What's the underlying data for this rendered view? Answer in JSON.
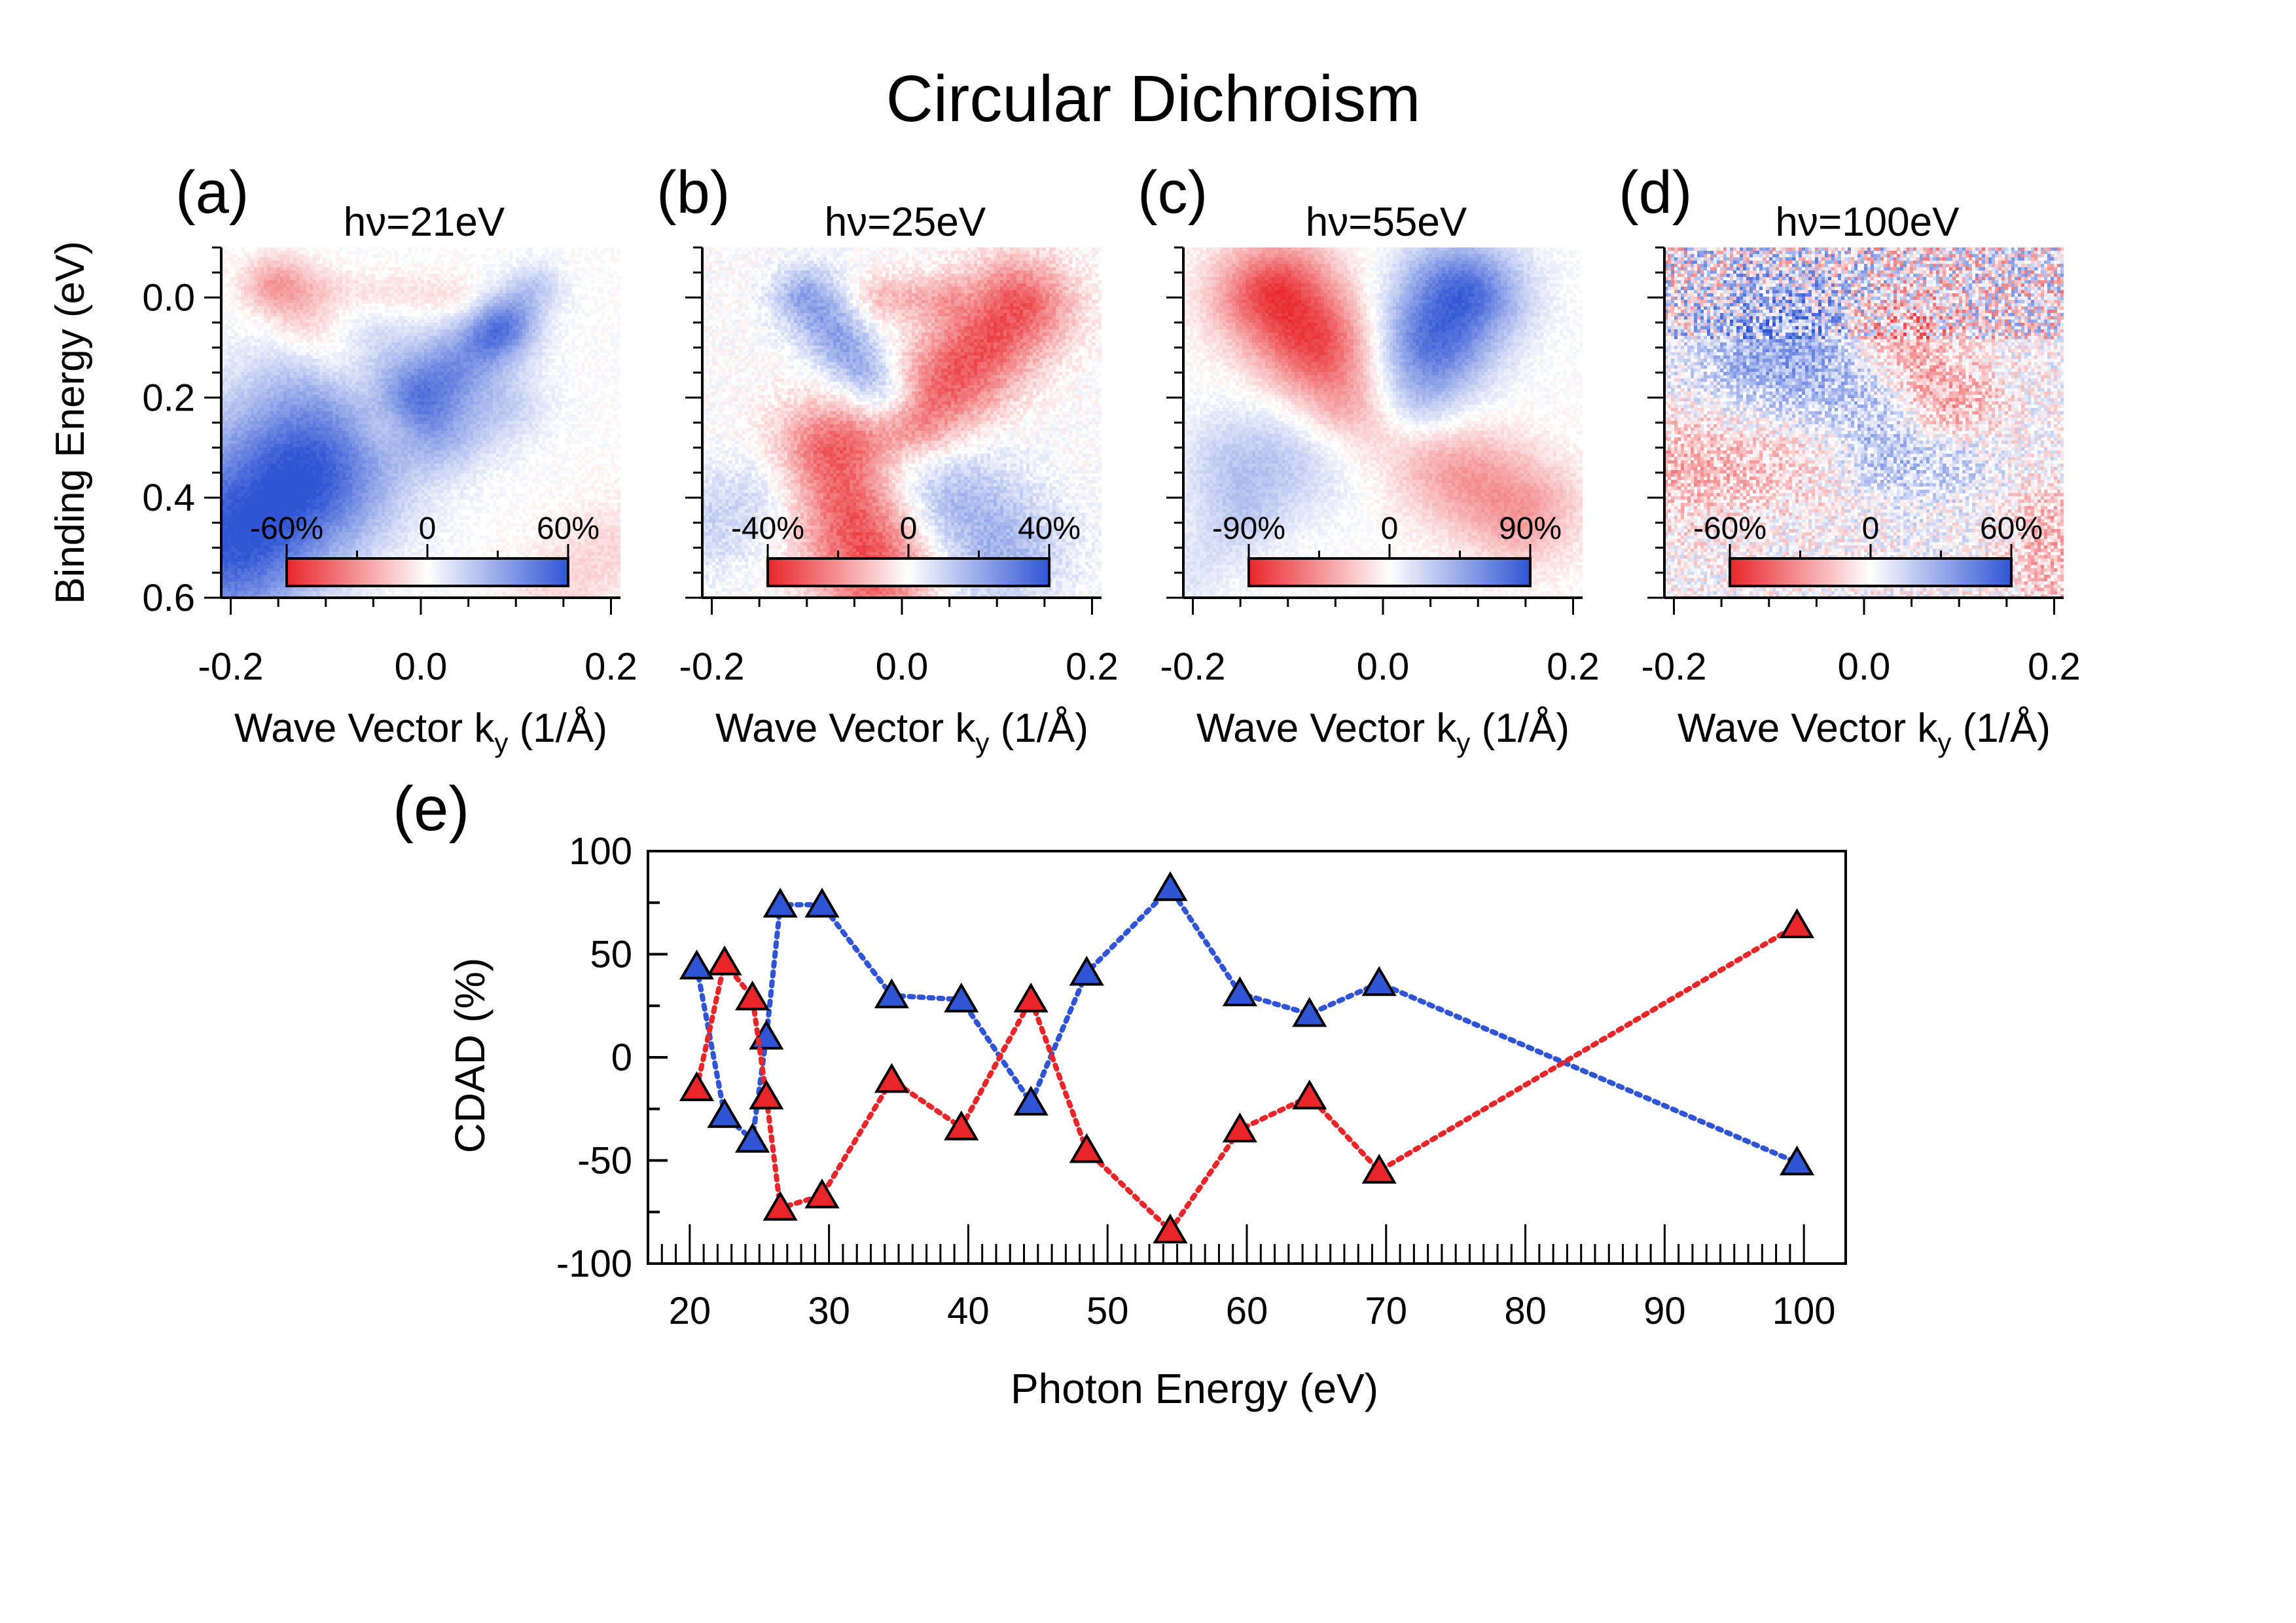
{
  "title": "Circular Dichroism",
  "colors": {
    "red": "#e8262a",
    "blue": "#2f55d4",
    "axis": "#000000"
  },
  "panels": [
    {
      "label": "(a)",
      "photon_energy_label": "hν=21eV",
      "colorbar": {
        "min_label": "-60%",
        "mid_label": "0",
        "max_label": "60%"
      },
      "features": [
        {
          "color": "red",
          "k0": -0.15,
          "e0": -0.02,
          "k1": -0.04,
          "e1": 0.24,
          "w": 0.028,
          "strength": 0.35
        },
        {
          "color": "red",
          "k0": -0.15,
          "e0": -0.02,
          "k1": 0.04,
          "e1": 0.0,
          "w": 0.02,
          "strength": 0.18
        },
        {
          "color": "blue",
          "k0": 0.0,
          "e0": 0.2,
          "k1": 0.08,
          "e1": 0.07,
          "w": 0.03,
          "strength": 0.55
        },
        {
          "color": "blue",
          "k0": 0.08,
          "e0": 0.07,
          "k1": 0.12,
          "e1": -0.02,
          "w": 0.02,
          "strength": 0.3
        },
        {
          "color": "blue",
          "k0": -0.2,
          "e0": 0.42,
          "k1": -0.08,
          "e1": 0.22,
          "w": 0.07,
          "strength": 0.6
        },
        {
          "color": "blue",
          "k0": -0.2,
          "e0": 0.55,
          "k1": -0.12,
          "e1": 0.4,
          "w": 0.06,
          "strength": 0.55
        },
        {
          "color": "blue",
          "k0": 0.03,
          "e0": 0.28,
          "k1": 0.09,
          "e1": 0.22,
          "w": 0.03,
          "strength": 0.25
        },
        {
          "color": "red",
          "k0": 0.14,
          "e0": 0.6,
          "k1": 0.2,
          "e1": 0.5,
          "w": 0.04,
          "strength": 0.18
        }
      ],
      "noise": 0.06
    },
    {
      "label": "(b)",
      "photon_energy_label": "hν=25eV",
      "colorbar": {
        "min_label": "-40%",
        "mid_label": "0",
        "max_label": "40%"
      },
      "features": [
        {
          "color": "blue",
          "k0": -0.1,
          "e0": 0.0,
          "k1": -0.02,
          "e1": 0.2,
          "w": 0.025,
          "strength": 0.55
        },
        {
          "color": "red",
          "k0": 0.02,
          "e0": 0.24,
          "k1": 0.12,
          "e1": 0.02,
          "w": 0.04,
          "strength": 0.8
        },
        {
          "color": "red",
          "k0": -0.07,
          "e0": 0.32,
          "k1": -0.03,
          "e1": 0.54,
          "w": 0.045,
          "strength": 0.85
        },
        {
          "color": "blue",
          "k0": 0.02,
          "e0": 0.34,
          "k1": 0.1,
          "e1": 0.5,
          "w": 0.05,
          "strength": 0.45
        },
        {
          "color": "red",
          "k0": -0.02,
          "e0": 0.0,
          "k1": 0.04,
          "e1": 0.0,
          "w": 0.02,
          "strength": 0.3
        },
        {
          "color": "blue",
          "k0": -0.2,
          "e0": 0.45,
          "k1": -0.14,
          "e1": 0.38,
          "w": 0.04,
          "strength": 0.25
        }
      ],
      "noise": 0.1
    },
    {
      "label": "(c)",
      "photon_energy_label": "hν=55eV",
      "colorbar": {
        "min_label": "-90%",
        "mid_label": "0",
        "max_label": "90%"
      },
      "features": [
        {
          "color": "red",
          "k0": -0.11,
          "e0": 0.0,
          "k1": -0.03,
          "e1": 0.18,
          "w": 0.045,
          "strength": 0.95
        },
        {
          "color": "blue",
          "k0": 0.02,
          "e0": 0.18,
          "k1": 0.08,
          "e1": 0.0,
          "w": 0.045,
          "strength": 0.95
        },
        {
          "color": "blue",
          "k0": -0.14,
          "e0": 0.34,
          "k1": -0.03,
          "e1": 0.27,
          "w": 0.05,
          "strength": 0.35
        },
        {
          "color": "red",
          "k0": 0.01,
          "e0": 0.27,
          "k1": 0.14,
          "e1": 0.42,
          "w": 0.045,
          "strength": 0.5
        },
        {
          "color": "blue",
          "k0": -0.2,
          "e0": 0.55,
          "k1": -0.15,
          "e1": 0.45,
          "w": 0.03,
          "strength": 0.15
        }
      ],
      "noise": 0.06
    },
    {
      "label": "(d)",
      "photon_energy_label": "hν=100eV",
      "colorbar": {
        "min_label": "-60%",
        "mid_label": "0",
        "max_label": "60%"
      },
      "features": [
        {
          "color": "blue",
          "k0": -0.08,
          "e0": 0.12,
          "k1": 0.0,
          "e1": 0.2,
          "w": 0.07,
          "strength": 0.55
        },
        {
          "color": "red",
          "k0": 0.04,
          "e0": 0.1,
          "k1": 0.08,
          "e1": 0.2,
          "w": 0.04,
          "strength": 0.65
        },
        {
          "color": "red",
          "k0": -0.2,
          "e0": 0.33,
          "k1": -0.05,
          "e1": 0.3,
          "w": 0.05,
          "strength": 0.35
        },
        {
          "color": "blue",
          "k0": 0.02,
          "e0": 0.32,
          "k1": 0.1,
          "e1": 0.34,
          "w": 0.03,
          "strength": 0.18
        },
        {
          "color": "red",
          "k0": 0.19,
          "e0": 0.45,
          "k1": 0.2,
          "e1": 0.55,
          "w": 0.03,
          "strength": 0.3
        }
      ],
      "noise": 0.3
    }
  ],
  "panel_axes": {
    "ylabel": "Binding Energy (eV)",
    "xlabel_main": "Wave Vector k",
    "xlabel_sub": "y",
    "xlabel_unit": " (1/Å)",
    "xlim": [
      -0.21,
      0.21
    ],
    "ylim": [
      -0.1,
      0.6
    ],
    "xticks": [
      -0.2,
      0.0,
      0.2
    ],
    "xtick_labels": [
      "-0.2",
      "0.0",
      "0.2"
    ],
    "yticks": [
      0.0,
      0.2,
      0.4,
      0.6
    ],
    "ytick_labels": [
      "0.0",
      "0.2",
      "0.4",
      "0.6"
    ]
  },
  "chart_data": {
    "type": "scatter",
    "panel_label": "(e)",
    "title": "Circular Dichroism",
    "xlabel": "Photon Energy (eV)",
    "ylabel": "CDAD (%)",
    "xlim": [
      17,
      103
    ],
    "ylim": [
      -100,
      100
    ],
    "xticks": [
      20,
      30,
      40,
      50,
      60,
      70,
      80,
      90,
      100
    ],
    "xtick_labels": [
      "20",
      "30",
      "40",
      "50",
      "60",
      "70",
      "80",
      "90",
      "100"
    ],
    "yticks": [
      -100,
      -50,
      0,
      50,
      100
    ],
    "ytick_labels": [
      "-100",
      "-50",
      "0",
      "50",
      "100"
    ],
    "series": [
      {
        "name": "blue",
        "color": "#2f55d4",
        "marker": "triangle",
        "line": "dotted",
        "points": [
          [
            20.5,
            44
          ],
          [
            22.5,
            -28
          ],
          [
            24.5,
            -40
          ],
          [
            25.5,
            10
          ],
          [
            26.5,
            74
          ],
          [
            29.5,
            74
          ],
          [
            34.5,
            30
          ],
          [
            39.5,
            28
          ],
          [
            44.5,
            -22
          ],
          [
            48.5,
            41
          ],
          [
            54.5,
            82
          ],
          [
            59.5,
            31
          ],
          [
            64.5,
            21
          ],
          [
            69.5,
            36
          ],
          [
            99.5,
            -51
          ]
        ]
      },
      {
        "name": "red",
        "color": "#e8262a",
        "marker": "triangle",
        "line": "dotted",
        "points": [
          [
            20.5,
            -15
          ],
          [
            22.5,
            46
          ],
          [
            24.5,
            29
          ],
          [
            25.5,
            -19
          ],
          [
            26.5,
            -73
          ],
          [
            29.5,
            -67
          ],
          [
            34.5,
            -11
          ],
          [
            39.5,
            -34
          ],
          [
            44.5,
            28
          ],
          [
            48.5,
            -45
          ],
          [
            54.5,
            -84
          ],
          [
            59.5,
            -35
          ],
          [
            64.5,
            -19
          ],
          [
            69.5,
            -55
          ],
          [
            99.5,
            64
          ]
        ]
      }
    ]
  }
}
